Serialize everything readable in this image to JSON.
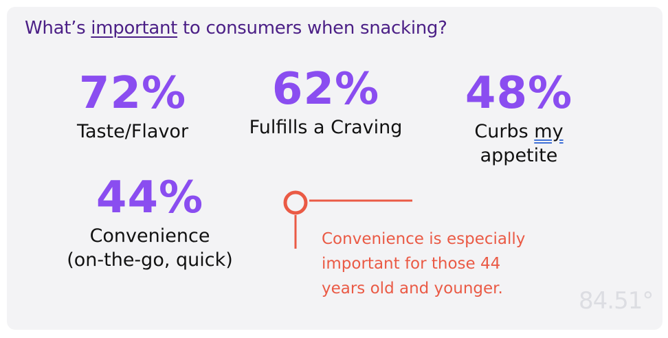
{
  "title": {
    "before": "What’s ",
    "underlined": "important",
    "after": " to consumers when snacking?"
  },
  "chart_data": {
    "type": "table",
    "title": "What’s important to consumers when snacking?",
    "unit": "%",
    "stats": [
      {
        "value": 72,
        "display": "72%",
        "label_lines": [
          "Taste/Flavor"
        ]
      },
      {
        "value": 62,
        "display": "62%",
        "label_lines": [
          "Fulfills a Craving"
        ]
      },
      {
        "value": 48,
        "display": "48%",
        "label_prefix": "Curbs ",
        "label_marked": "my",
        "label_lines_rest": [
          "appetite"
        ]
      },
      {
        "value": 44,
        "display": "44%",
        "label_lines": [
          "Convenience",
          "(on-the-go, quick)"
        ]
      }
    ],
    "annotation": {
      "lines": [
        "Convenience is especially",
        "important for those 44",
        "years old and younger."
      ],
      "color": "#ea5a45"
    }
  },
  "colors": {
    "title": "#4b1f86",
    "percent": "#8a4df0",
    "label": "#111111",
    "callout": "#ea5a45",
    "background": "#f3f3f5"
  },
  "logo": {
    "text": "84.51°"
  }
}
